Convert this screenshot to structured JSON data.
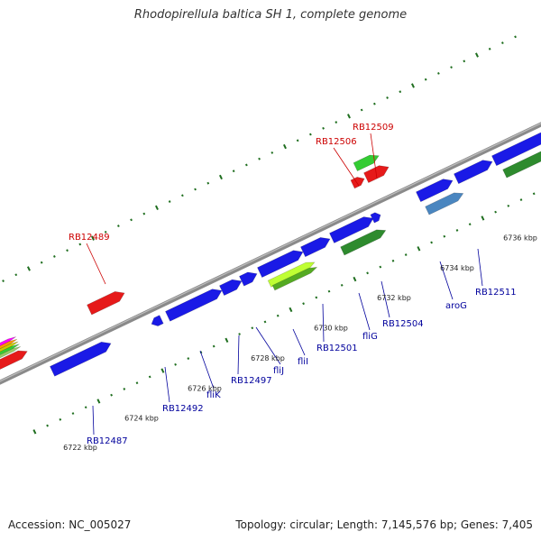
{
  "title": "Rhodopirellula baltica SH 1, complete genome",
  "footer": {
    "accession": "Accession: NC_005027",
    "stats": "Topology: circular; Length: 7,145,576 bp; Genes: 7,405"
  },
  "colors": {
    "backbone": "#7a7a7a",
    "tick": "#1f6e1f",
    "forward_gene": "#1a1ae6",
    "reverse_gene": "#1a1ae6",
    "rna_gene": "#e61a1a",
    "green_gene": "#2e8b2e",
    "light_green_gene": "#33cc33",
    "lime_gene": "#bfff33",
    "steel_gene": "#4a86c0",
    "forward_label": "#cc0000",
    "reverse_label": "#00009c"
  },
  "scale_labels": [
    "6722 kbp",
    "6724 kbp",
    "6726 kbp",
    "6728 kbp",
    "6730 kbp",
    "6732 kbp",
    "6734 kbp",
    "6736 kbp"
  ],
  "upper_labels": [
    {
      "text": "RB12489",
      "color": "#cc0000"
    },
    {
      "text": "RB12506",
      "color": "#cc0000"
    },
    {
      "text": "RB12509",
      "color": "#cc0000"
    }
  ],
  "lower_labels": [
    {
      "text": "RB12487",
      "color": "#00009c"
    },
    {
      "text": "RB12492",
      "color": "#00009c"
    },
    {
      "text": "fliK",
      "color": "#00009c"
    },
    {
      "text": "RB12497",
      "color": "#00009c"
    },
    {
      "text": "fliJ",
      "color": "#00009c"
    },
    {
      "text": "fliI",
      "color": "#00009c"
    },
    {
      "text": "RB12501",
      "color": "#00009c"
    },
    {
      "text": "fliG",
      "color": "#00009c"
    },
    {
      "text": "RB12504",
      "color": "#00009c"
    },
    {
      "text": "aroG",
      "color": "#00009c"
    },
    {
      "text": "RB12511",
      "color": "#00009c"
    }
  ]
}
